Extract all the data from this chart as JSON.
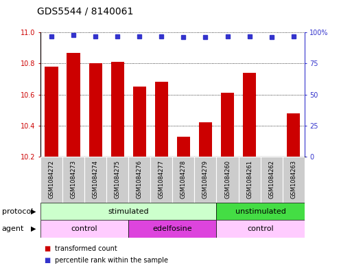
{
  "title": "GDS5544 / 8140061",
  "samples": [
    "GSM1084272",
    "GSM1084273",
    "GSM1084274",
    "GSM1084275",
    "GSM1084276",
    "GSM1084277",
    "GSM1084278",
    "GSM1084279",
    "GSM1084260",
    "GSM1084261",
    "GSM1084262",
    "GSM1084263"
  ],
  "bar_values": [
    10.78,
    10.87,
    10.8,
    10.81,
    10.65,
    10.68,
    10.33,
    10.42,
    10.61,
    10.74,
    10.2,
    10.48
  ],
  "percentile_values": [
    97,
    98,
    97,
    97,
    97,
    97,
    96,
    96,
    97,
    97,
    96,
    97
  ],
  "bar_color": "#cc0000",
  "dot_color": "#3333cc",
  "ylim_left": [
    10.2,
    11.0
  ],
  "ylim_right": [
    0,
    100
  ],
  "yticks_left": [
    10.2,
    10.4,
    10.6,
    10.8,
    11.0
  ],
  "yticks_right": [
    0,
    25,
    50,
    75,
    100
  ],
  "protocol_groups": [
    {
      "label": "stimulated",
      "start": 0,
      "end": 8,
      "color": "#ccffcc"
    },
    {
      "label": "unstimulated",
      "start": 8,
      "end": 12,
      "color": "#44dd44"
    }
  ],
  "agent_groups": [
    {
      "label": "control",
      "start": 0,
      "end": 4,
      "color": "#ffccff"
    },
    {
      "label": "edelfosine",
      "start": 4,
      "end": 8,
      "color": "#dd44dd"
    },
    {
      "label": "control",
      "start": 8,
      "end": 12,
      "color": "#ffccff"
    }
  ],
  "legend_items": [
    {
      "label": "transformed count",
      "color": "#cc0000"
    },
    {
      "label": "percentile rank within the sample",
      "color": "#3333cc"
    }
  ],
  "background_color": "#ffffff",
  "bar_bg_color": "#cccccc",
  "title_fontsize": 10,
  "label_fontsize": 6,
  "axis_fontsize": 7,
  "row_fontsize": 8
}
